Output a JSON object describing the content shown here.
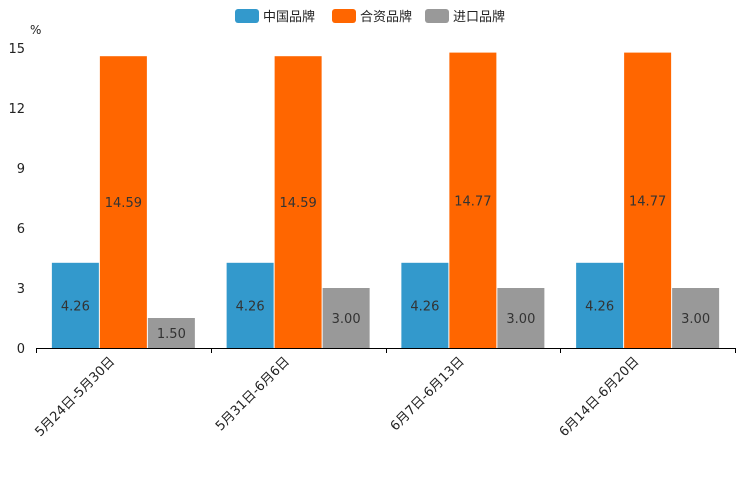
{
  "chart_data": {
    "type": "bar",
    "unit": "%",
    "categories": [
      "5月24日-5月30日",
      "5月31日-6月6日",
      "6月7日-6月13日",
      "6月14日-6月20日"
    ],
    "series": [
      {
        "name": "中国品牌",
        "color": "#3399CC",
        "values": [
          4.26,
          4.26,
          4.26,
          4.26
        ],
        "labels": [
          "4.26",
          "4.26",
          "4.26",
          "4.26"
        ]
      },
      {
        "name": "合资品牌",
        "color": "#FF6600",
        "values": [
          14.59,
          14.59,
          14.77,
          14.77
        ],
        "labels": [
          "14.59",
          "14.59",
          "14.77",
          "14.77"
        ]
      },
      {
        "name": "进口品牌",
        "color": "#999999",
        "values": [
          1.5,
          3.0,
          3.0,
          3.0
        ],
        "labels": [
          "1.50",
          "3.00",
          "3.00",
          "3.00"
        ]
      }
    ],
    "yticks": [
      "0",
      "3",
      "6",
      "9",
      "12",
      "15"
    ],
    "ylim": [
      0,
      15
    ],
    "legend_position": "top-center",
    "grid": false
  }
}
